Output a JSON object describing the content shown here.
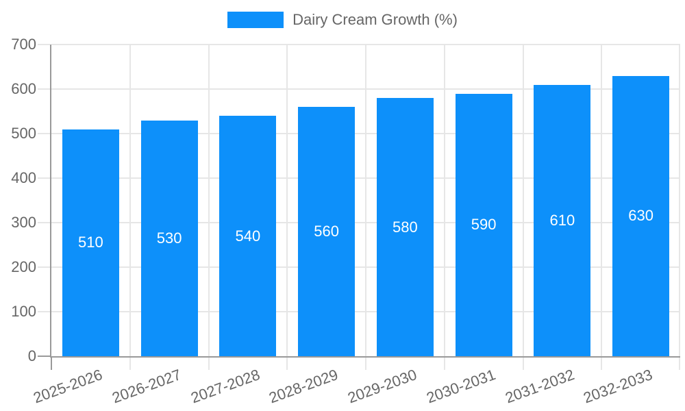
{
  "legend": {
    "items": [
      {
        "label": "Dairy Cream Growth (%)"
      }
    ]
  },
  "chart_data": {
    "type": "bar",
    "title": "",
    "categories": [
      "2025-2026",
      "2026-2027",
      "2027-2028",
      "2028-2029",
      "2029-2030",
      "2030-2031",
      "2031-2032",
      "2032-2033"
    ],
    "series": [
      {
        "name": "Dairy Cream Growth (%)",
        "color": "#0d90fa",
        "values": [
          510,
          530,
          540,
          560,
          580,
          590,
          610,
          630
        ]
      }
    ],
    "value_labels": "inside-center",
    "value_label_color": "#ffffff",
    "xlabel": "",
    "ylabel": "",
    "ylim": [
      0,
      700
    ],
    "yticks": [
      0,
      100,
      200,
      300,
      400,
      500,
      600,
      700
    ],
    "x_label_rotation_deg": -20,
    "grid": true,
    "legend_position": "top-center"
  },
  "colors": {
    "bar": "#0d90fa",
    "axis_text": "#666666",
    "grid_line": "#e6e6e6",
    "axis_line": "#999999",
    "background": "#ffffff"
  }
}
